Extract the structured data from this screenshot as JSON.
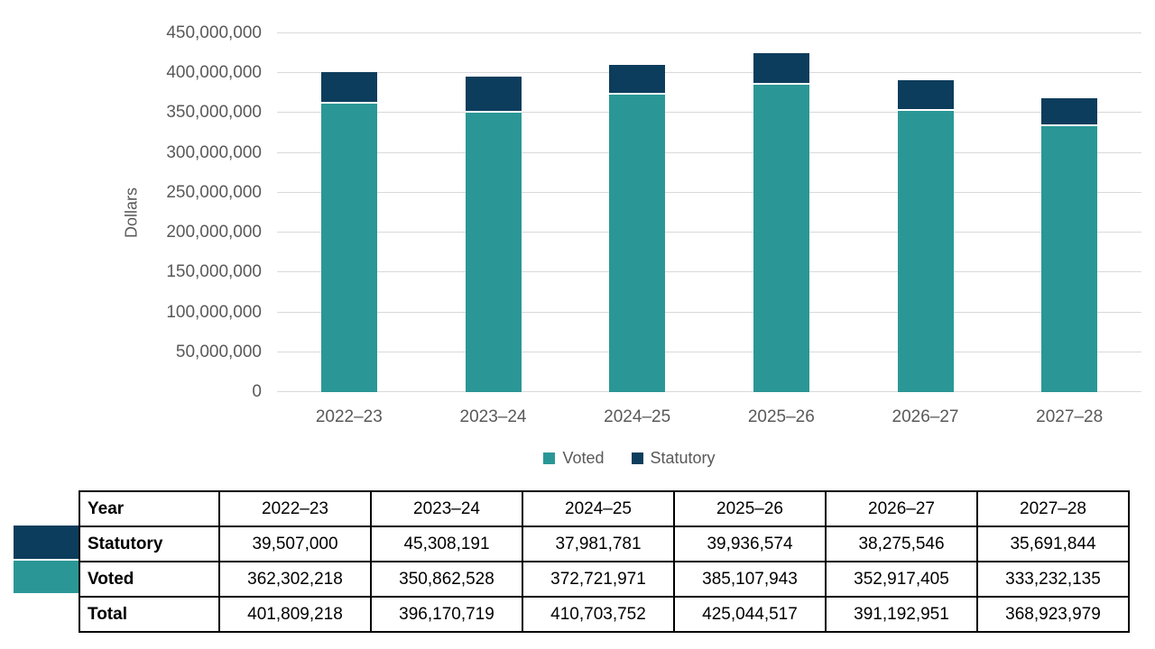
{
  "chart_data": {
    "type": "bar",
    "stacked": true,
    "title": "",
    "ylabel": "Dollars",
    "xlabel": "",
    "categories": [
      "2022–23",
      "2023–24",
      "2024–25",
      "2025–26",
      "2026–27",
      "2027–28"
    ],
    "series": [
      {
        "name": "Voted",
        "color": "#2A9796",
        "values": [
          362302218,
          350862528,
          372721971,
          385107943,
          352917405,
          333232135
        ]
      },
      {
        "name": "Statutory",
        "color": "#0D3D5C",
        "values": [
          39507000,
          45308191,
          37981781,
          39936574,
          38275546,
          35691844
        ]
      }
    ],
    "totals": [
      401809218,
      396170719,
      410703752,
      425044517,
      391192951,
      368923979
    ],
    "ylim": [
      0,
      450000000
    ],
    "ytick_step": 50000000,
    "ytick_labels": [
      "0",
      "50,000,000",
      "100,000,000",
      "150,000,000",
      "200,000,000",
      "250,000,000",
      "300,000,000",
      "350,000,000",
      "400,000,000",
      "450,000,000"
    ],
    "grid": true,
    "legend_position": "bottom"
  },
  "table": {
    "header_label": "Year",
    "columns": [
      "2022–23",
      "2023–24",
      "2024–25",
      "2025–26",
      "2026–27",
      "2027–28"
    ],
    "rows": [
      {
        "label": "Statutory",
        "swatch": "#0D3D5C",
        "values": [
          "39,507,000",
          "45,308,191",
          "37,981,781",
          "39,936,574",
          "38,275,546",
          "35,691,844"
        ]
      },
      {
        "label": "Voted",
        "swatch": "#2A9796",
        "values": [
          "362,302,218",
          "350,862,528",
          "372,721,971",
          "385,107,943",
          "352,917,405",
          "333,232,135"
        ]
      },
      {
        "label": "Total",
        "swatch": null,
        "values": [
          "401,809,218",
          "396,170,719",
          "410,703,752",
          "425,044,517",
          "391,192,951",
          "368,923,979"
        ]
      }
    ]
  },
  "colors": {
    "voted_teal": "#2A9796",
    "statutory_navy": "#0D3D5C",
    "axis_text": "#595959",
    "gridline": "#D9D9D9",
    "table_border": "#000000",
    "background": "#FFFFFF"
  }
}
